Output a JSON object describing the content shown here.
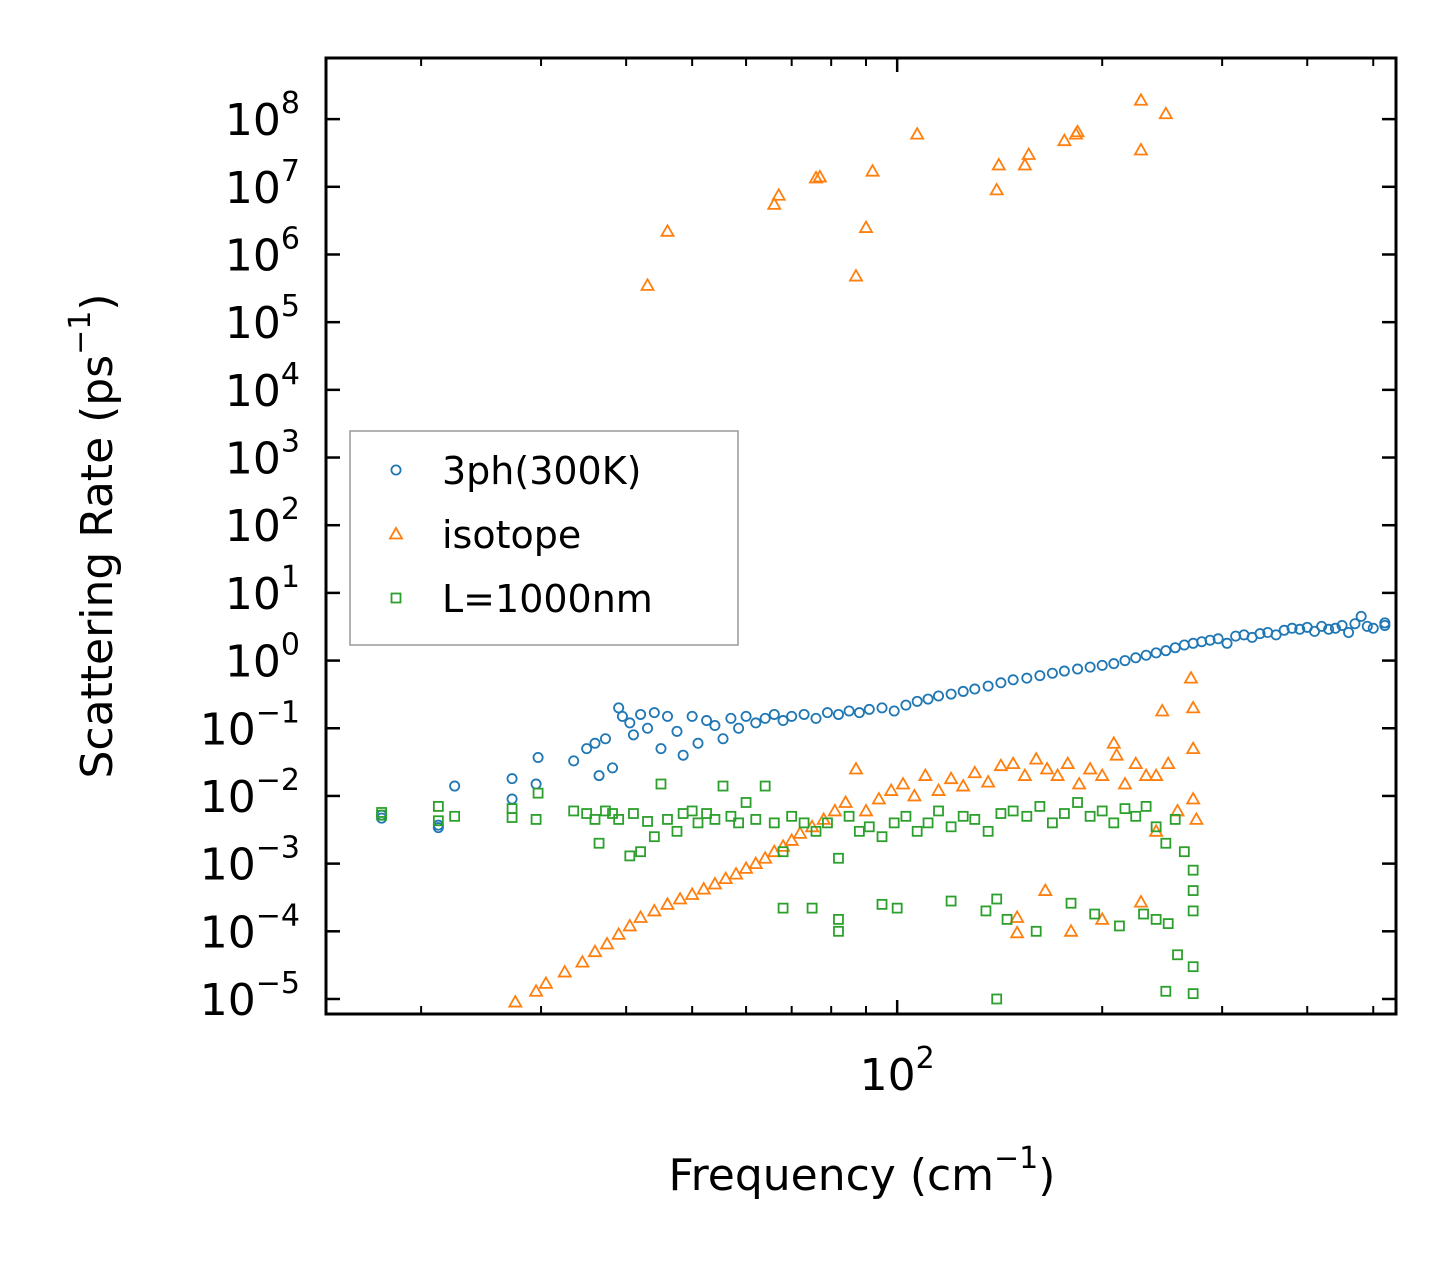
{
  "chart_data": {
    "type": "scatter",
    "title": "",
    "xlabel": "Frequency (cm",
    "xlabel_unit_exp": "−1",
    "xlabel_suffix": ")",
    "ylabel": "Scattering Rate (ps",
    "ylabel_unit_exp": "−1",
    "ylabel_suffix": ")",
    "x_scale": "log",
    "y_scale": "log",
    "xlim": [
      14.5,
      540
    ],
    "ylim": [
      6e-06,
      800000000.0
    ],
    "x_major_ticks": [
      {
        "value": 100,
        "base": "10",
        "exp": "2"
      }
    ],
    "y_major_ticks": [
      {
        "value": 1e-05,
        "base": "10",
        "exp": "−5"
      },
      {
        "value": 0.0001,
        "base": "10",
        "exp": "−4"
      },
      {
        "value": 0.001,
        "base": "10",
        "exp": "−3"
      },
      {
        "value": 0.01,
        "base": "10",
        "exp": "−2"
      },
      {
        "value": 0.1,
        "base": "10",
        "exp": "−1"
      },
      {
        "value": 1.0,
        "base": "10",
        "exp": "0"
      },
      {
        "value": 10.0,
        "base": "10",
        "exp": "1"
      },
      {
        "value": 100.0,
        "base": "10",
        "exp": "2"
      },
      {
        "value": 1000.0,
        "base": "10",
        "exp": "3"
      },
      {
        "value": 10000.0,
        "base": "10",
        "exp": "4"
      },
      {
        "value": 100000.0,
        "base": "10",
        "exp": "5"
      },
      {
        "value": 1000000.0,
        "base": "10",
        "exp": "6"
      },
      {
        "value": 10000000.0,
        "base": "10",
        "exp": "7"
      },
      {
        "value": 100000000.0,
        "base": "10",
        "exp": "8"
      }
    ],
    "legend_position": "center-left",
    "series": [
      {
        "name": "3ph(300K)",
        "marker": "circle",
        "color": "#1f77b4",
        "points": [
          [
            17.5,
            0.0052
          ],
          [
            17.5,
            0.0047
          ],
          [
            21.2,
            0.0037
          ],
          [
            21.2,
            0.0034
          ],
          [
            22.4,
            0.014
          ],
          [
            27.2,
            0.018
          ],
          [
            27.2,
            0.009
          ],
          [
            29.5,
            0.015
          ],
          [
            29.7,
            0.037
          ],
          [
            33.5,
            0.033
          ],
          [
            35.0,
            0.05
          ],
          [
            36.0,
            0.06
          ],
          [
            36.5,
            0.02
          ],
          [
            37.3,
            0.07
          ],
          [
            38.2,
            0.026
          ],
          [
            39.0,
            0.2
          ],
          [
            39.5,
            0.15
          ],
          [
            40.5,
            0.12
          ],
          [
            41.0,
            0.08
          ],
          [
            42.0,
            0.16
          ],
          [
            43.0,
            0.1
          ],
          [
            44.0,
            0.17
          ],
          [
            45.0,
            0.05
          ],
          [
            46.0,
            0.15
          ],
          [
            47.5,
            0.09
          ],
          [
            48.5,
            0.04
          ],
          [
            50.0,
            0.15
          ],
          [
            51.0,
            0.06
          ],
          [
            52.5,
            0.13
          ],
          [
            54.0,
            0.11
          ],
          [
            55.5,
            0.07
          ],
          [
            57.0,
            0.14
          ],
          [
            58.5,
            0.1
          ],
          [
            60.0,
            0.15
          ],
          [
            62.0,
            0.12
          ],
          [
            64.0,
            0.14
          ],
          [
            66.0,
            0.16
          ],
          [
            68.0,
            0.13
          ],
          [
            70.0,
            0.15
          ],
          [
            73.0,
            0.16
          ],
          [
            76.0,
            0.14
          ],
          [
            79.0,
            0.17
          ],
          [
            82.0,
            0.16
          ],
          [
            85.0,
            0.18
          ],
          [
            88.0,
            0.17
          ],
          [
            91.0,
            0.19
          ],
          [
            95.0,
            0.2
          ],
          [
            99.0,
            0.18
          ],
          [
            103.0,
            0.22
          ],
          [
            107.0,
            0.25
          ],
          [
            111.0,
            0.27
          ],
          [
            115.0,
            0.3
          ],
          [
            120.0,
            0.32
          ],
          [
            125.0,
            0.35
          ],
          [
            130.0,
            0.38
          ],
          [
            136.0,
            0.42
          ],
          [
            142.0,
            0.47
          ],
          [
            148.0,
            0.52
          ],
          [
            155.0,
            0.55
          ],
          [
            162.0,
            0.6
          ],
          [
            169.0,
            0.65
          ],
          [
            176.0,
            0.7
          ],
          [
            184.0,
            0.75
          ],
          [
            192.0,
            0.8
          ],
          [
            200.0,
            0.85
          ],
          [
            208.0,
            0.9
          ],
          [
            216.0,
            1.0
          ],
          [
            224.0,
            1.1
          ],
          [
            232.0,
            1.2
          ],
          [
            240.0,
            1.3
          ],
          [
            248.0,
            1.4
          ],
          [
            256.0,
            1.55
          ],
          [
            264.0,
            1.7
          ],
          [
            272.0,
            1.8
          ],
          [
            280.0,
            1.9
          ],
          [
            288.0,
            2.0
          ],
          [
            296.0,
            2.1
          ],
          [
            305.0,
            1.8
          ],
          [
            314.0,
            2.3
          ],
          [
            323.0,
            2.4
          ],
          [
            332.0,
            2.2
          ],
          [
            341.0,
            2.5
          ],
          [
            350.0,
            2.6
          ],
          [
            360.0,
            2.4
          ],
          [
            370.0,
            2.8
          ],
          [
            380.0,
            3.0
          ],
          [
            390.0,
            2.9
          ],
          [
            400.0,
            3.1
          ],
          [
            410.0,
            2.7
          ],
          [
            420.0,
            3.2
          ],
          [
            430.0,
            2.9
          ],
          [
            440.0,
            3.0
          ],
          [
            450.0,
            3.3
          ],
          [
            460.0,
            2.6
          ],
          [
            470.0,
            3.5
          ],
          [
            480.0,
            4.5
          ],
          [
            490.0,
            3.2
          ],
          [
            500.0,
            3.0
          ],
          [
            520.0,
            3.3
          ],
          [
            520.0,
            3.6
          ]
        ]
      },
      {
        "name": "isotope",
        "marker": "triangle",
        "color": "#ff7f0e",
        "points": [
          [
            43.0,
            350000
          ],
          [
            46.0,
            2200000
          ],
          [
            66.0,
            5500000
          ],
          [
            67.0,
            7500000
          ],
          [
            76.0,
            13500000
          ],
          [
            77.0,
            14000000
          ],
          [
            87.0,
            480000
          ],
          [
            90.0,
            2500000
          ],
          [
            92.0,
            17000000
          ],
          [
            107.0,
            60000000
          ],
          [
            140.0,
            9000000
          ],
          [
            141.0,
            21000000
          ],
          [
            154.0,
            21000000
          ],
          [
            156.0,
            30000000
          ],
          [
            176.0,
            48000000
          ],
          [
            183.0,
            60000000
          ],
          [
            184.0,
            65000000
          ],
          [
            228.0,
            190000000
          ],
          [
            228.0,
            35000000
          ],
          [
            248.0,
            120000000
          ],
          [
            27.5,
            9e-06
          ],
          [
            29.5,
            1.3e-05
          ],
          [
            30.5,
            1.7e-05
          ],
          [
            32.5,
            2.5e-05
          ],
          [
            34.5,
            3.5e-05
          ],
          [
            36.0,
            5e-05
          ],
          [
            37.5,
            6.5e-05
          ],
          [
            39.0,
            9e-05
          ],
          [
            40.5,
            0.00012
          ],
          [
            42.0,
            0.00016
          ],
          [
            44.0,
            0.0002
          ],
          [
            46.0,
            0.00025
          ],
          [
            48.0,
            0.0003
          ],
          [
            50.0,
            0.00035
          ],
          [
            52.0,
            0.00042
          ],
          [
            54.0,
            0.0005
          ],
          [
            56.0,
            0.0006
          ],
          [
            58.0,
            0.0007
          ],
          [
            60.0,
            0.00085
          ],
          [
            62.0,
            0.001
          ],
          [
            64.0,
            0.0012
          ],
          [
            66.0,
            0.0015
          ],
          [
            68.0,
            0.0018
          ],
          [
            70.0,
            0.0022
          ],
          [
            72.0,
            0.0028
          ],
          [
            75.0,
            0.0035
          ],
          [
            78.0,
            0.0045
          ],
          [
            81.0,
            0.006
          ],
          [
            84.0,
            0.008
          ],
          [
            87.0,
            0.025
          ],
          [
            90.0,
            0.006
          ],
          [
            94.0,
            0.009
          ],
          [
            98.0,
            0.012
          ],
          [
            102.0,
            0.015
          ],
          [
            106.0,
            0.01
          ],
          [
            110.0,
            0.02
          ],
          [
            115.0,
            0.012
          ],
          [
            120.0,
            0.018
          ],
          [
            125.0,
            0.014
          ],
          [
            130.0,
            0.022
          ],
          [
            136.0,
            0.016
          ],
          [
            142.0,
            0.028
          ],
          [
            148.0,
            0.03
          ],
          [
            154.0,
            0.02
          ],
          [
            160.0,
            0.035
          ],
          [
            166.0,
            0.025
          ],
          [
            172.0,
            0.02
          ],
          [
            178.0,
            0.03
          ],
          [
            185.0,
            0.015
          ],
          [
            192.0,
            0.025
          ],
          [
            200.0,
            0.02
          ],
          [
            208.0,
            0.06
          ],
          [
            210.0,
            0.04
          ],
          [
            216.0,
            0.015
          ],
          [
            224.0,
            0.03
          ],
          [
            232.0,
            0.02
          ],
          [
            240.0,
            0.02
          ],
          [
            245.0,
            0.18
          ],
          [
            250.0,
            0.03
          ],
          [
            258.0,
            0.006
          ],
          [
            270.0,
            0.55
          ],
          [
            272.0,
            0.2
          ],
          [
            272.0,
            0.05
          ],
          [
            150.0,
            9.5e-05
          ],
          [
            150.0,
            0.00016
          ],
          [
            165.0,
            0.0004
          ],
          [
            180.0,
            0.0001
          ],
          [
            200.0,
            0.00015
          ],
          [
            228.0,
            0.00027
          ],
          [
            240.0,
            0.003
          ],
          [
            272.0,
            0.009
          ],
          [
            275.0,
            0.0045
          ]
        ]
      },
      {
        "name": "L=1000nm",
        "marker": "square",
        "color": "#2ca02c",
        "points": [
          [
            17.5,
            0.0057
          ],
          [
            17.5,
            0.0052
          ],
          [
            21.2,
            0.007
          ],
          [
            21.2,
            0.0043
          ],
          [
            22.4,
            0.005
          ],
          [
            27.2,
            0.0065
          ],
          [
            27.2,
            0.0048
          ],
          [
            29.5,
            0.0045
          ],
          [
            29.7,
            0.011
          ],
          [
            33.5,
            0.006
          ],
          [
            35.0,
            0.0055
          ],
          [
            36.0,
            0.0045
          ],
          [
            36.5,
            0.002
          ],
          [
            37.3,
            0.006
          ],
          [
            38.2,
            0.0055
          ],
          [
            39.0,
            0.0045
          ],
          [
            40.5,
            0.0013
          ],
          [
            41.0,
            0.0055
          ],
          [
            42.0,
            0.0015
          ],
          [
            43.0,
            0.0042
          ],
          [
            44.0,
            0.0025
          ],
          [
            45.0,
            0.015
          ],
          [
            46.0,
            0.0045
          ],
          [
            47.5,
            0.003
          ],
          [
            48.5,
            0.0055
          ],
          [
            50.0,
            0.006
          ],
          [
            51.0,
            0.004
          ],
          [
            52.5,
            0.0055
          ],
          [
            54.0,
            0.0045
          ],
          [
            55.5,
            0.014
          ],
          [
            57.0,
            0.005
          ],
          [
            58.5,
            0.004
          ],
          [
            60.0,
            0.008
          ],
          [
            62.0,
            0.0045
          ],
          [
            64.0,
            0.014
          ],
          [
            66.0,
            0.004
          ],
          [
            68.0,
            0.0015
          ],
          [
            70.0,
            0.005
          ],
          [
            73.0,
            0.004
          ],
          [
            76.0,
            0.003
          ],
          [
            79.0,
            0.004
          ],
          [
            82.0,
            0.0012
          ],
          [
            85.0,
            0.005
          ],
          [
            88.0,
            0.003
          ],
          [
            91.0,
            0.0035
          ],
          [
            95.0,
            0.0025
          ],
          [
            99.0,
            0.004
          ],
          [
            103.0,
            0.005
          ],
          [
            107.0,
            0.003
          ],
          [
            111.0,
            0.004
          ],
          [
            115.0,
            0.006
          ],
          [
            120.0,
            0.0035
          ],
          [
            125.0,
            0.005
          ],
          [
            130.0,
            0.0045
          ],
          [
            136.0,
            0.003
          ],
          [
            142.0,
            0.0055
          ],
          [
            148.0,
            0.006
          ],
          [
            155.0,
            0.005
          ],
          [
            162.0,
            0.007
          ],
          [
            169.0,
            0.004
          ],
          [
            176.0,
            0.0055
          ],
          [
            184.0,
            0.008
          ],
          [
            192.0,
            0.005
          ],
          [
            200.0,
            0.006
          ],
          [
            208.0,
            0.004
          ],
          [
            216.0,
            0.0065
          ],
          [
            224.0,
            0.005
          ],
          [
            232.0,
            0.007
          ],
          [
            240.0,
            0.0035
          ],
          [
            248.0,
            0.002
          ],
          [
            256.0,
            0.0045
          ],
          [
            264.0,
            0.0015
          ],
          [
            272.0,
            0.0008
          ],
          [
            272.0,
            0.0004
          ],
          [
            272.0,
            0.0002
          ],
          [
            272.0,
            3e-05
          ],
          [
            272.0,
            1.2e-05
          ],
          [
            68.0,
            0.00022
          ],
          [
            75.0,
            0.00022
          ],
          [
            82.0,
            0.00015
          ],
          [
            82.0,
            0.0001
          ],
          [
            95.0,
            0.00025
          ],
          [
            100.0,
            0.00022
          ],
          [
            120.0,
            0.00028
          ],
          [
            135.0,
            0.0002
          ],
          [
            145.0,
            0.00015
          ],
          [
            160.0,
            0.0001
          ],
          [
            180.0,
            0.00026
          ],
          [
            195.0,
            0.00018
          ],
          [
            212.0,
            0.00012
          ],
          [
            230.0,
            0.00018
          ],
          [
            240.0,
            0.00015
          ],
          [
            250.0,
            0.00013
          ],
          [
            258.0,
            4.5e-05
          ],
          [
            140.0,
            1e-05
          ],
          [
            248.0,
            1.3e-05
          ],
          [
            140.0,
            0.0003
          ]
        ]
      }
    ]
  }
}
